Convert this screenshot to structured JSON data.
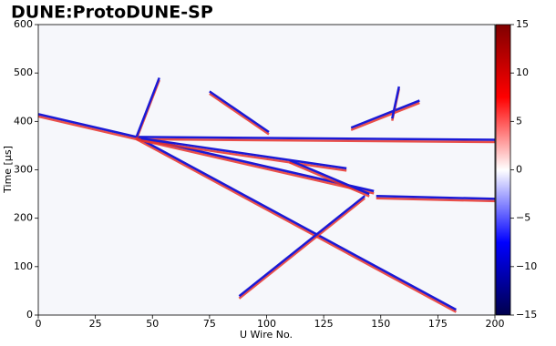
{
  "chart_data": {
    "type": "heatmap",
    "title": "DUNE:ProtoDUNE-SP",
    "xlabel": "U Wire No.",
    "ylabel": "Time [μs]",
    "xlim": [
      0,
      200
    ],
    "ylim": [
      0,
      600
    ],
    "xticks": [
      0,
      25,
      50,
      75,
      100,
      125,
      150,
      175,
      200
    ],
    "yticks": [
      0,
      100,
      200,
      300,
      400,
      500,
      600
    ],
    "clim": [
      -15,
      15
    ],
    "cticks": [
      {
        "value": -15,
        "label": "−15"
      },
      {
        "value": -10,
        "label": "−10"
      },
      {
        "value": -5,
        "label": "−5"
      },
      0,
      5,
      10,
      15
    ],
    "tracks": [
      {
        "x": [
          0,
          43
        ],
        "y": [
          415,
          368
        ]
      },
      {
        "x": [
          43,
          183
        ],
        "y": [
          368,
          11
        ]
      },
      {
        "x": [
          43,
          147
        ],
        "y": [
          368,
          256
        ]
      },
      {
        "x": [
          43,
          200
        ],
        "y": [
          368,
          362
        ]
      },
      {
        "x": [
          43,
          53
        ],
        "y": [
          368,
          490
        ]
      },
      {
        "x": [
          88,
          143
        ],
        "y": [
          39,
          246
        ]
      },
      {
        "x": [
          137,
          167
        ],
        "y": [
          387,
          443
        ]
      },
      {
        "x": [
          148,
          200
        ],
        "y": [
          246,
          240
        ]
      },
      {
        "x": [
          75,
          101
        ],
        "y": [
          462,
          378
        ]
      },
      {
        "x": [
          45,
          135
        ],
        "y": [
          365,
          303
        ]
      },
      {
        "x": [
          110,
          145
        ],
        "y": [
          320,
          250
        ]
      },
      {
        "x": [
          158,
          155
        ],
        "y": [
          472,
          406
        ]
      }
    ]
  }
}
